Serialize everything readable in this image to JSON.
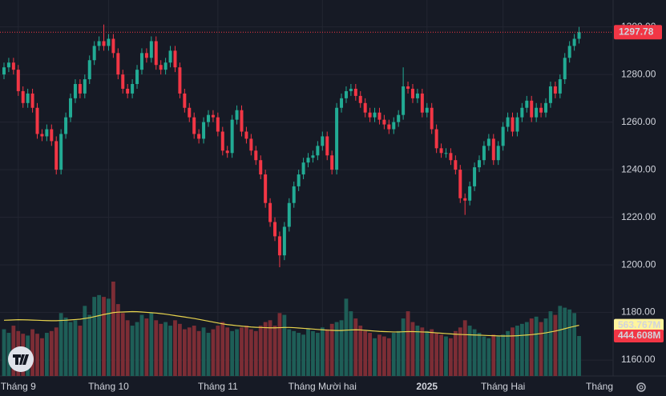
{
  "chart_data": {
    "type": "candlestick",
    "categories": [
      null,
      null,
      null,
      "Tháng 9",
      null,
      null,
      null,
      null,
      null,
      null,
      null,
      null,
      null,
      null,
      null,
      null,
      null,
      null,
      null,
      null,
      null,
      null,
      "Tháng 10",
      null,
      null,
      null,
      null,
      null,
      null,
      null,
      null,
      null,
      null,
      null,
      null,
      null,
      null,
      null,
      null,
      null,
      null,
      null,
      null,
      null,
      null,
      "Tháng 11",
      null,
      null,
      null,
      null,
      null,
      null,
      null,
      null,
      null,
      null,
      null,
      null,
      null,
      null,
      null,
      null,
      null,
      null,
      null,
      null,
      null,
      "Tháng Mười hai",
      null,
      null,
      null,
      null,
      null,
      null,
      null,
      null,
      null,
      null,
      null,
      null,
      null,
      null,
      null,
      null,
      null,
      null,
      null,
      null,
      null,
      "2025",
      null,
      null,
      null,
      null,
      null,
      null,
      null,
      null,
      null,
      null,
      null,
      null,
      null,
      null,
      null,
      "Tháng Hai",
      null,
      null,
      null,
      null,
      null,
      null,
      null,
      null,
      null,
      null,
      null,
      null,
      null,
      null,
      null,
      null
    ],
    "xaxis_overflow_label": "Tháng",
    "open": [
      1280,
      1283,
      1285,
      1282,
      1273,
      1268,
      1272,
      1266,
      1255,
      1254,
      1257,
      1252,
      1240,
      1255,
      1262,
      1270,
      1276,
      1272,
      1278,
      1286,
      1292,
      1294,
      1292,
      1295,
      1289,
      1280,
      1274,
      1272,
      1276,
      1282,
      1289,
      1287,
      1294,
      1284,
      1282,
      1285,
      1290,
      1283,
      1272,
      1266,
      1262,
      1255,
      1253,
      1260,
      1263,
      1262,
      1256,
      1248,
      1247,
      1261,
      1265,
      1256,
      1253,
      1248,
      1244,
      1238,
      1226,
      1218,
      1212,
      1204,
      1216,
      1226,
      1233,
      1238,
      1243,
      1245,
      1246,
      1250,
      1254,
      1246,
      1240,
      1266,
      1270,
      1273,
      1274,
      1271,
      1268,
      1264,
      1262,
      1264,
      1261,
      1259,
      1257,
      1260,
      1263,
      1275,
      1274,
      1270,
      1272,
      1264,
      1266,
      1257,
      1249,
      1247,
      1247,
      1244,
      1240,
      1228,
      1227,
      1233,
      1241,
      1244,
      1250,
      1253,
      1244,
      1250,
      1258,
      1262,
      1256,
      1262,
      1266,
      1269,
      1262,
      1266,
      1264,
      1268,
      1275,
      1272,
      1278,
      1287,
      1292,
      1295
    ],
    "high": [
      1285,
      1287,
      1287,
      1284,
      1275,
      1274,
      1274,
      1268,
      1257,
      1259,
      1259,
      1254,
      1257,
      1264,
      1272,
      1278,
      1278,
      1280,
      1288,
      1294,
      1296,
      1301,
      1297,
      1297,
      1291,
      1282,
      1276,
      1278,
      1284,
      1291,
      1291,
      1296,
      1296,
      1286,
      1287,
      1292,
      1292,
      1285,
      1274,
      1268,
      1264,
      1257,
      1262,
      1265,
      1265,
      1264,
      1258,
      1250,
      1263,
      1267,
      1267,
      1258,
      1255,
      1250,
      1246,
      1240,
      1228,
      1220,
      1214,
      1218,
      1228,
      1235,
      1240,
      1245,
      1247,
      1248,
      1252,
      1256,
      1256,
      1248,
      1268,
      1272,
      1275,
      1276,
      1276,
      1273,
      1270,
      1266,
      1266,
      1266,
      1263,
      1261,
      1262,
      1265,
      1283,
      1277,
      1276,
      1274,
      1274,
      1268,
      1268,
      1259,
      1251,
      1249,
      1249,
      1246,
      1242,
      1230,
      1235,
      1243,
      1246,
      1252,
      1255,
      1255,
      1252,
      1260,
      1264,
      1264,
      1264,
      1268,
      1271,
      1271,
      1268,
      1268,
      1270,
      1277,
      1277,
      1280,
      1289,
      1294,
      1297,
      1300
    ],
    "low": [
      1278,
      1281,
      1280,
      1271,
      1266,
      1266,
      1264,
      1253,
      1252,
      1252,
      1250,
      1238,
      1238,
      1253,
      1260,
      1268,
      1270,
      1270,
      1276,
      1284,
      1290,
      1290,
      1290,
      1287,
      1278,
      1272,
      1270,
      1270,
      1274,
      1280,
      1285,
      1285,
      1282,
      1280,
      1280,
      1283,
      1281,
      1270,
      1264,
      1260,
      1253,
      1251,
      1251,
      1258,
      1260,
      1254,
      1246,
      1245,
      1245,
      1259,
      1254,
      1251,
      1246,
      1242,
      1236,
      1224,
      1216,
      1210,
      1199,
      1202,
      1214,
      1224,
      1231,
      1236,
      1241,
      1243,
      1244,
      1248,
      1244,
      1238,
      1238,
      1264,
      1268,
      1271,
      1269,
      1266,
      1262,
      1260,
      1260,
      1259,
      1257,
      1255,
      1255,
      1258,
      1261,
      1272,
      1268,
      1268,
      1262,
      1262,
      1255,
      1247,
      1245,
      1245,
      1242,
      1238,
      1226,
      1221,
      1225,
      1231,
      1239,
      1242,
      1248,
      1242,
      1242,
      1248,
      1256,
      1254,
      1254,
      1260,
      1264,
      1260,
      1260,
      1262,
      1262,
      1266,
      1270,
      1270,
      1276,
      1285,
      1290,
      1293
    ],
    "close": [
      1283,
      1285,
      1282,
      1273,
      1268,
      1272,
      1266,
      1255,
      1254,
      1257,
      1252,
      1240,
      1255,
      1262,
      1270,
      1276,
      1272,
      1278,
      1286,
      1292,
      1294,
      1292,
      1295,
      1289,
      1280,
      1274,
      1272,
      1276,
      1282,
      1289,
      1287,
      1294,
      1284,
      1282,
      1285,
      1290,
      1283,
      1272,
      1266,
      1262,
      1255,
      1253,
      1260,
      1263,
      1262,
      1256,
      1248,
      1247,
      1261,
      1265,
      1256,
      1253,
      1248,
      1244,
      1238,
      1226,
      1218,
      1212,
      1204,
      1216,
      1226,
      1233,
      1238,
      1243,
      1245,
      1246,
      1250,
      1254,
      1246,
      1240,
      1266,
      1270,
      1273,
      1274,
      1271,
      1268,
      1264,
      1262,
      1264,
      1261,
      1259,
      1257,
      1260,
      1263,
      1275,
      1274,
      1270,
      1272,
      1264,
      1266,
      1257,
      1249,
      1247,
      1247,
      1244,
      1240,
      1228,
      1227,
      1233,
      1241,
      1244,
      1250,
      1253,
      1244,
      1250,
      1258,
      1262,
      1256,
      1262,
      1266,
      1269,
      1262,
      1266,
      1264,
      1268,
      1275,
      1272,
      1278,
      1287,
      1292,
      1295,
      1297.78
    ],
    "up_color": "#22ab94",
    "down_color": "#f23645",
    "ylim": [
      1153.3,
      1311.3
    ],
    "yticks": [
      {
        "value": 1160,
        "label": "1160.00"
      },
      {
        "value": 1180,
        "label": "1180.00"
      },
      {
        "value": 1200,
        "label": "1200.00"
      },
      {
        "value": 1220,
        "label": "1220.00"
      },
      {
        "value": 1240,
        "label": "1240.00"
      },
      {
        "value": 1260,
        "label": "1260.00"
      },
      {
        "value": 1280,
        "label": "1280.00"
      },
      {
        "value": 1300,
        "label": "1300.00"
      }
    ],
    "grid": true,
    "volume": {
      "values": [
        520,
        480,
        560,
        500,
        470,
        450,
        520,
        470,
        420,
        480,
        500,
        540,
        700,
        650,
        600,
        620,
        560,
        780,
        680,
        880,
        900,
        880,
        860,
        1050,
        800,
        700,
        620,
        560,
        600,
        680,
        640,
        700,
        620,
        580,
        600,
        560,
        620,
        580,
        520,
        540,
        560,
        500,
        540,
        480,
        520,
        560,
        600,
        540,
        500,
        520,
        540,
        560,
        520,
        500,
        560,
        600,
        620,
        560,
        700,
        680,
        520,
        500,
        480,
        460,
        520,
        500,
        480,
        540,
        520,
        580,
        600,
        620,
        860,
        720,
        640,
        560,
        500,
        480,
        420,
        460,
        440,
        420,
        480,
        500,
        640,
        720,
        600,
        560,
        540,
        500,
        520,
        480,
        460,
        440,
        420,
        500,
        540,
        620,
        560,
        520,
        480,
        440,
        420,
        460,
        440,
        460,
        500,
        540,
        560,
        580,
        600,
        640,
        660,
        600,
        640,
        720,
        680,
        780,
        760,
        740,
        700,
        444.608
      ],
      "up_color": "#1e5e57",
      "down_color": "#7c2d35",
      "last_value_label": "444.608M"
    },
    "volume_ma": {
      "values": [
        620,
        622,
        624,
        626,
        625,
        624,
        622,
        620,
        618,
        616,
        615,
        615,
        618,
        620,
        624,
        628,
        632,
        640,
        648,
        660,
        672,
        684,
        694,
        705,
        710,
        712,
        714,
        716,
        715,
        712,
        708,
        704,
        700,
        694,
        688,
        680,
        672,
        664,
        656,
        648,
        640,
        630,
        620,
        610,
        600,
        590,
        580,
        572,
        566,
        560,
        555,
        550,
        545,
        542,
        540,
        538,
        536,
        536,
        538,
        540,
        540,
        538,
        534,
        530,
        526,
        522,
        518,
        514,
        510,
        508,
        506,
        506,
        510,
        512,
        514,
        512,
        508,
        504,
        500,
        496,
        494,
        492,
        490,
        490,
        492,
        494,
        494,
        492,
        490,
        488,
        484,
        480,
        476,
        472,
        468,
        465,
        462,
        460,
        458,
        456,
        455,
        452,
        450,
        448,
        446,
        445,
        445,
        446,
        448,
        452,
        456,
        460,
        466,
        472,
        480,
        490,
        500,
        512,
        526,
        540,
        552,
        563.767
      ],
      "color": "#e8d44d",
      "last_value_label": "563.767M"
    }
  }
}
